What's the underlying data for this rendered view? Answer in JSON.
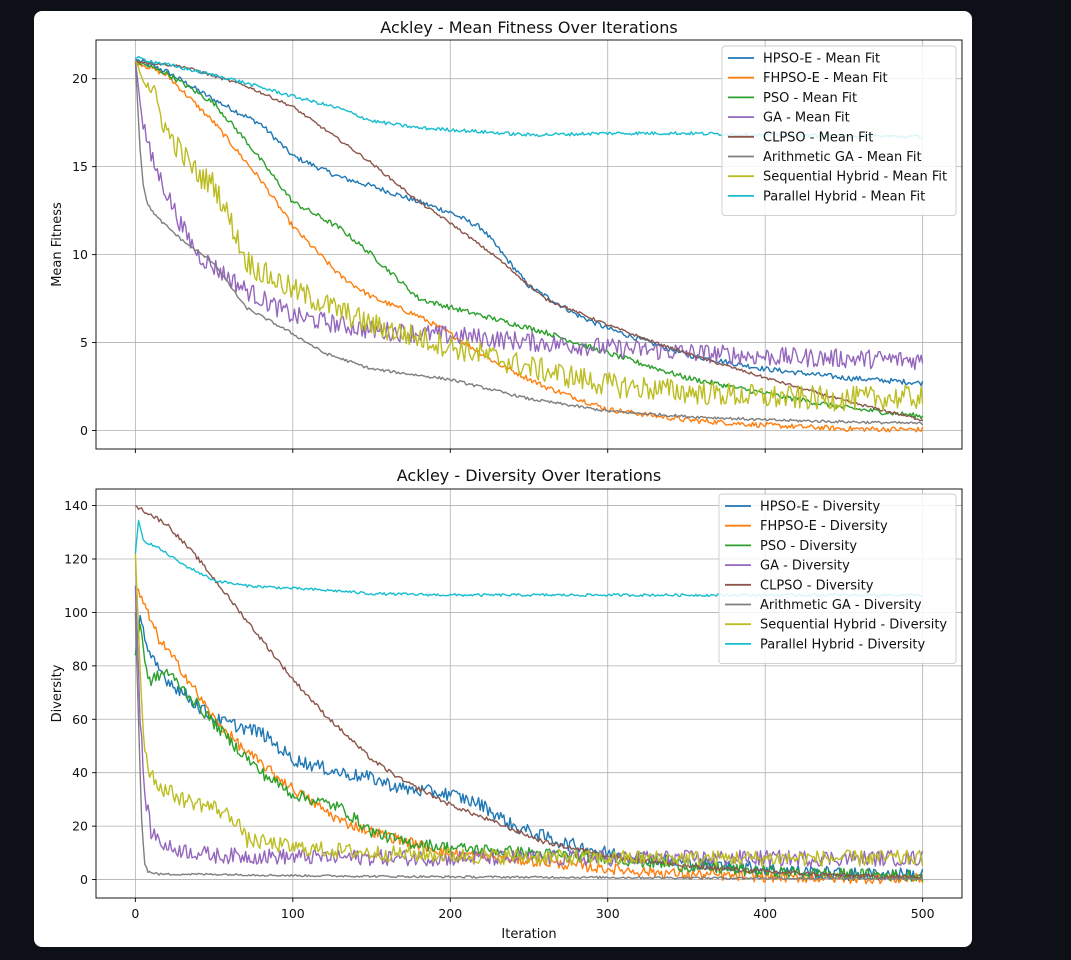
{
  "chart_data": [
    {
      "type": "line",
      "title": "Ackley - Mean Fitness Over Iterations",
      "xlabel": "",
      "ylabel": "Mean Fitness",
      "xlim": [
        -25,
        525
      ],
      "ylim": [
        -1.05,
        22.2
      ],
      "xticks": [
        "0",
        "100",
        "200",
        "300",
        "400",
        "500"
      ],
      "yticks": [
        "0",
        "5",
        "10",
        "15",
        "20"
      ],
      "ytick_values": [
        0,
        5,
        10,
        15,
        20
      ],
      "grid": true,
      "legend": "top-right",
      "series": [
        {
          "name": "HPSO-E - Mean Fit",
          "color": "#1f77b4",
          "noise": 0.15,
          "x": [
            0,
            20,
            50,
            80,
            100,
            130,
            150,
            170,
            200,
            220,
            250,
            280,
            300,
            350,
            400,
            450,
            500
          ],
          "y": [
            21.1,
            20.4,
            18.8,
            17.4,
            15.6,
            14.4,
            13.9,
            13.3,
            12.4,
            11.5,
            8.2,
            6.6,
            5.8,
            4.3,
            3.5,
            3.0,
            2.7
          ]
        },
        {
          "name": "FHPSO-E - Mean Fit",
          "color": "#ff7f0e",
          "noise": 0.15,
          "x": [
            0,
            20,
            50,
            80,
            100,
            130,
            150,
            180,
            200,
            230,
            260,
            300,
            350,
            400,
            450,
            500
          ],
          "y": [
            21.0,
            20.2,
            17.5,
            14.2,
            11.6,
            8.8,
            7.6,
            6.5,
            5.5,
            3.8,
            2.5,
            1.2,
            0.6,
            0.3,
            0.1,
            0.05
          ]
        },
        {
          "name": "PSO - Mean Fit",
          "color": "#2ca02c",
          "noise": 0.15,
          "x": [
            0,
            20,
            50,
            70,
            100,
            130,
            150,
            180,
            200,
            230,
            260,
            300,
            350,
            400,
            450,
            500
          ],
          "y": [
            21.0,
            20.3,
            18.6,
            16.5,
            13.0,
            11.5,
            10.0,
            7.5,
            7.0,
            6.3,
            5.6,
            4.4,
            3.0,
            2.1,
            1.3,
            0.8
          ]
        },
        {
          "name": "GA - Mean Fit",
          "color": "#9467bd",
          "noise": 0.55,
          "x": [
            0,
            5,
            10,
            20,
            30,
            40,
            50,
            70,
            90,
            100,
            150,
            200,
            300,
            400,
            500
          ],
          "y": [
            21.0,
            17.5,
            15.5,
            13.5,
            11.5,
            10.0,
            9.3,
            8.0,
            7.0,
            6.5,
            5.7,
            5.4,
            4.7,
            4.2,
            4.0
          ]
        },
        {
          "name": "CLPSO - Mean Fit",
          "color": "#8c564b",
          "noise": 0.08,
          "x": [
            0,
            30,
            70,
            100,
            130,
            150,
            180,
            200,
            230,
            260,
            300,
            330,
            360,
            400,
            450,
            500
          ],
          "y": [
            21.0,
            20.7,
            19.6,
            18.4,
            16.5,
            15.2,
            13.0,
            11.8,
            9.8,
            7.5,
            6.0,
            5.0,
            4.1,
            3.0,
            1.7,
            0.6
          ]
        },
        {
          "name": "Arithmetic GA - Mean Fit",
          "color": "#7f7f7f",
          "noise": 0.08,
          "x": [
            0,
            3,
            5,
            8,
            15,
            30,
            50,
            70,
            100,
            120,
            150,
            200,
            250,
            300,
            350,
            400,
            450,
            500
          ],
          "y": [
            21.0,
            16.0,
            14.0,
            12.8,
            12.0,
            10.8,
            9.5,
            7.0,
            5.5,
            4.4,
            3.5,
            2.9,
            1.8,
            1.1,
            0.8,
            0.6,
            0.5,
            0.4
          ]
        },
        {
          "name": "Sequential Hybrid - Mean Fit",
          "color": "#bcbd22",
          "noise": 0.7,
          "x": [
            0,
            10,
            20,
            30,
            40,
            50,
            60,
            70,
            80,
            90,
            100,
            150,
            200,
            250,
            300,
            350,
            400,
            450,
            500
          ],
          "y": [
            21.0,
            19.5,
            17.0,
            15.7,
            14.5,
            14.0,
            12.0,
            9.7,
            9.0,
            8.5,
            8.0,
            6.0,
            4.8,
            3.6,
            2.6,
            2.2,
            1.9,
            1.8,
            1.9
          ]
        },
        {
          "name": "Parallel Hybrid - Mean Fit",
          "color": "#17becf",
          "noise": 0.1,
          "x": [
            0,
            30,
            60,
            100,
            130,
            150,
            180,
            200,
            250,
            300,
            350,
            400,
            450,
            500
          ],
          "y": [
            21.2,
            20.6,
            20.0,
            19.0,
            18.3,
            17.6,
            17.2,
            17.1,
            16.8,
            16.9,
            16.9,
            16.8,
            16.75,
            16.7
          ]
        }
      ]
    },
    {
      "type": "line",
      "title": "Ackley - Diversity Over Iterations",
      "xlabel": "Iteration",
      "ylabel": "Diversity",
      "xlim": [
        -25,
        525
      ],
      "ylim": [
        -6.9,
        146.2
      ],
      "xticks": [
        "0",
        "100",
        "200",
        "300",
        "400",
        "500"
      ],
      "yticks": [
        "0",
        "20",
        "40",
        "60",
        "80",
        "100",
        "120",
        "140"
      ],
      "ytick_values": [
        0,
        20,
        40,
        60,
        80,
        100,
        120,
        140
      ],
      "grid": true,
      "legend": "top-right",
      "series": [
        {
          "name": "HPSO-E - Diversity",
          "color": "#1f77b4",
          "noise": 2.5,
          "x": [
            0,
            3,
            8,
            20,
            50,
            80,
            100,
            130,
            150,
            170,
            200,
            220,
            240,
            270,
            300,
            350,
            400,
            450,
            500
          ],
          "y": [
            84,
            100,
            84,
            75,
            60,
            55,
            45,
            40,
            38,
            34,
            32,
            28,
            20,
            14,
            10,
            6,
            4,
            2,
            2
          ]
        },
        {
          "name": "FHPSO-E - Diversity",
          "color": "#ff7f0e",
          "noise": 2.0,
          "x": [
            0,
            2,
            6,
            15,
            30,
            50,
            70,
            100,
            130,
            150,
            180,
            200,
            250,
            300,
            350,
            400,
            450,
            500
          ],
          "y": [
            110,
            108,
            102,
            90,
            78,
            60,
            48,
            34,
            22,
            18,
            13,
            10,
            7,
            4,
            2,
            1,
            0.5,
            0.3
          ]
        },
        {
          "name": "PSO - Diversity",
          "color": "#2ca02c",
          "noise": 2.2,
          "x": [
            0,
            3,
            8,
            20,
            40,
            60,
            80,
            100,
            130,
            150,
            170,
            200,
            250,
            300,
            350,
            400,
            450,
            500
          ],
          "y": [
            84,
            96,
            74,
            78,
            65,
            52,
            40,
            32,
            27,
            18,
            14,
            12,
            10,
            8,
            5,
            3,
            2,
            1.5
          ]
        },
        {
          "name": "GA - Diversity",
          "color": "#9467bd",
          "noise": 3.0,
          "x": [
            0,
            3,
            6,
            10,
            20,
            50,
            100,
            200,
            300,
            400,
            500
          ],
          "y": [
            110,
            60,
            32,
            18,
            12,
            9,
            8.5,
            8,
            8,
            8,
            8
          ]
        },
        {
          "name": "CLPSO - Diversity",
          "color": "#8c564b",
          "noise": 0.8,
          "x": [
            0,
            20,
            40,
            60,
            80,
            100,
            120,
            150,
            170,
            200,
            230,
            260,
            300,
            350,
            400,
            450,
            500
          ],
          "y": [
            140,
            133,
            120,
            105,
            90,
            75,
            62,
            45,
            37,
            28,
            21,
            14,
            9,
            5,
            3,
            1.5,
            0.8
          ]
        },
        {
          "name": "Arithmetic GA - Diversity",
          "color": "#7f7f7f",
          "noise": 0.4,
          "x": [
            0,
            2,
            4,
            6,
            8,
            15,
            50,
            100,
            200,
            300,
            400,
            500
          ],
          "y": [
            100,
            60,
            22,
            6,
            3,
            2,
            2,
            1.5,
            1,
            0.8,
            0.5,
            0.3
          ]
        },
        {
          "name": "Sequential Hybrid - Diversity",
          "color": "#bcbd22",
          "noise": 3.0,
          "x": [
            0,
            3,
            5,
            8,
            15,
            30,
            50,
            65,
            70,
            90,
            100,
            150,
            200,
            300,
            400,
            500
          ],
          "y": [
            122,
            80,
            55,
            42,
            35,
            30,
            27,
            22,
            15,
            13,
            12,
            10,
            9,
            8,
            8,
            8
          ]
        },
        {
          "name": "Parallel Hybrid - Diversity",
          "color": "#17becf",
          "noise": 0.5,
          "x": [
            0,
            2,
            5,
            15,
            30,
            50,
            70,
            100,
            130,
            150,
            200,
            300,
            400,
            500
          ],
          "y": [
            122,
            134,
            127,
            124,
            118,
            112,
            110,
            109,
            108,
            107,
            106.5,
            106.5,
            106.5,
            106.5
          ]
        }
      ]
    }
  ]
}
